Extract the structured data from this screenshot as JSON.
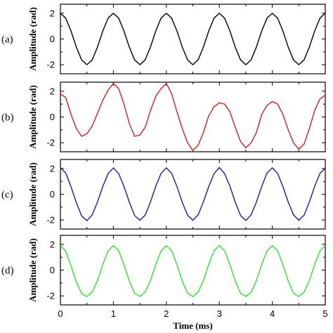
{
  "chart_data": [
    {
      "type": "line",
      "panel_label": "(a)",
      "ylabel": "Amplitude (rad)",
      "xlabel": "",
      "xlim": [
        0,
        5
      ],
      "ylim": [
        -2.7,
        2.7
      ],
      "xticks": [
        "0",
        "1",
        "2",
        "3",
        "4",
        "5"
      ],
      "yticks": [
        "-2",
        "0",
        "2"
      ],
      "grid": false,
      "color": "#000000",
      "x": [
        0,
        0.1,
        0.2,
        0.3,
        0.4,
        0.5,
        0.6,
        0.7,
        0.8,
        0.9,
        1.0,
        1.1,
        1.2,
        1.3,
        1.4,
        1.5,
        1.6,
        1.7,
        1.8,
        1.9,
        2.0,
        2.1,
        2.2,
        2.3,
        2.4,
        2.5,
        2.6,
        2.7,
        2.8,
        2.9,
        3.0,
        3.1,
        3.2,
        3.3,
        3.4,
        3.5,
        3.6,
        3.7,
        3.8,
        3.9,
        4.0,
        4.1,
        4.2,
        4.3,
        4.4,
        4.5,
        4.6,
        4.7,
        4.8,
        4.9,
        5.0
      ],
      "y": [
        2.0,
        1.62,
        0.62,
        -0.62,
        -1.62,
        -2.0,
        -1.62,
        -0.62,
        0.62,
        1.62,
        2.0,
        1.62,
        0.62,
        -0.62,
        -1.62,
        -2.0,
        -1.62,
        -0.62,
        0.62,
        1.62,
        2.0,
        1.62,
        0.62,
        -0.62,
        -1.62,
        -2.0,
        -1.62,
        -0.62,
        0.62,
        1.62,
        2.0,
        1.62,
        0.62,
        -0.62,
        -1.62,
        -2.0,
        -1.62,
        -0.62,
        0.62,
        1.62,
        2.0,
        1.62,
        0.62,
        -0.62,
        -1.62,
        -2.0,
        -1.62,
        -0.62,
        0.62,
        1.62,
        2.0
      ]
    },
    {
      "type": "line",
      "panel_label": "(b)",
      "ylabel": "Amplitude (rad)",
      "xlabel": "",
      "xlim": [
        0,
        5
      ],
      "ylim": [
        -2.7,
        2.7
      ],
      "xticks": [
        "0",
        "1",
        "2",
        "3",
        "4",
        "5"
      ],
      "yticks": [
        "-2",
        "0",
        "2"
      ],
      "grid": false,
      "color": "#cc2020",
      "x": [
        0,
        0.1,
        0.2,
        0.3,
        0.4,
        0.5,
        0.6,
        0.7,
        0.8,
        0.9,
        1.0,
        1.1,
        1.2,
        1.3,
        1.4,
        1.5,
        1.6,
        1.7,
        1.8,
        1.9,
        2.0,
        2.1,
        2.2,
        2.3,
        2.4,
        2.5,
        2.6,
        2.7,
        2.8,
        2.9,
        3.0,
        3.1,
        3.2,
        3.3,
        3.4,
        3.5,
        3.6,
        3.7,
        3.8,
        3.9,
        4.0,
        4.1,
        4.2,
        4.3,
        4.4,
        4.5,
        4.6,
        4.7,
        4.8,
        4.9,
        5.0
      ],
      "y": [
        1.8,
        1.5,
        0.2,
        -0.9,
        -1.5,
        -1.3,
        -0.7,
        0.3,
        1.3,
        2.1,
        2.6,
        2.2,
        1.0,
        -0.5,
        -1.5,
        -1.4,
        -0.8,
        0.5,
        1.6,
        2.2,
        2.6,
        1.8,
        0.4,
        -0.9,
        -2.0,
        -2.6,
        -2.2,
        -1.2,
        0.1,
        0.8,
        1.1,
        1.0,
        0.4,
        -0.8,
        -1.9,
        -2.4,
        -2.0,
        -1.2,
        0.2,
        0.9,
        1.2,
        1.0,
        0.2,
        -1.0,
        -2.0,
        -2.5,
        -2.1,
        -0.9,
        0.5,
        1.4,
        1.7
      ]
    },
    {
      "type": "line",
      "panel_label": "(c)",
      "ylabel": "Amplitude (rad)",
      "xlabel": "",
      "xlim": [
        0,
        5
      ],
      "ylim": [
        -2.7,
        2.7
      ],
      "xticks": [
        "0",
        "1",
        "2",
        "3",
        "4",
        "5"
      ],
      "yticks": [
        "-2",
        "0",
        "2"
      ],
      "grid": false,
      "color": "#1a1aa6",
      "x": [
        0,
        0.1,
        0.2,
        0.3,
        0.4,
        0.5,
        0.6,
        0.7,
        0.8,
        0.9,
        1.0,
        1.1,
        1.2,
        1.3,
        1.4,
        1.5,
        1.6,
        1.7,
        1.8,
        1.9,
        2.0,
        2.1,
        2.2,
        2.3,
        2.4,
        2.5,
        2.6,
        2.7,
        2.8,
        2.9,
        3.0,
        3.1,
        3.2,
        3.3,
        3.4,
        3.5,
        3.6,
        3.7,
        3.8,
        3.9,
        4.0,
        4.1,
        4.2,
        4.3,
        4.4,
        4.5,
        4.6,
        4.7,
        4.8,
        4.9,
        5.0
      ],
      "y": [
        2.05,
        1.65,
        0.58,
        -0.65,
        -1.68,
        -2.05,
        -1.6,
        -0.6,
        0.6,
        1.6,
        2.05,
        1.6,
        0.6,
        -0.6,
        -1.65,
        -2.02,
        -1.62,
        -0.6,
        0.62,
        1.62,
        2.05,
        1.62,
        0.6,
        -0.62,
        -1.62,
        -2.02,
        -1.6,
        -0.58,
        0.6,
        1.6,
        2.08,
        1.6,
        0.62,
        -0.6,
        -1.65,
        -2.04,
        -1.6,
        -0.6,
        0.6,
        1.65,
        2.05,
        1.62,
        0.6,
        -0.6,
        -1.6,
        -2.02,
        -1.62,
        -0.6,
        0.62,
        1.62,
        2.02
      ]
    },
    {
      "type": "line",
      "panel_label": "(d)",
      "ylabel": "Amplitude (rad)",
      "xlabel": "Time (ms)",
      "xlim": [
        0,
        5
      ],
      "ylim": [
        -2.7,
        2.7
      ],
      "xticks": [
        "0",
        "1",
        "2",
        "3",
        "4",
        "5"
      ],
      "yticks": [
        "-2",
        "0",
        "2"
      ],
      "grid": false,
      "color": "#33dd33",
      "x": [
        0,
        0.1,
        0.2,
        0.3,
        0.4,
        0.5,
        0.6,
        0.7,
        0.8,
        0.9,
        1.0,
        1.1,
        1.2,
        1.3,
        1.4,
        1.5,
        1.6,
        1.7,
        1.8,
        1.9,
        2.0,
        2.1,
        2.2,
        2.3,
        2.4,
        2.5,
        2.6,
        2.7,
        2.8,
        2.9,
        3.0,
        3.1,
        3.2,
        3.3,
        3.4,
        3.5,
        3.6,
        3.7,
        3.8,
        3.9,
        4.0,
        4.1,
        4.2,
        4.3,
        4.4,
        4.5,
        4.6,
        4.7,
        4.8,
        4.9,
        5.0
      ],
      "y": [
        1.95,
        1.45,
        0.32,
        -0.92,
        -1.82,
        -2.05,
        -1.7,
        -0.8,
        0.45,
        1.5,
        1.9,
        1.5,
        0.4,
        -0.85,
        -1.8,
        -2.05,
        -1.7,
        -0.8,
        0.45,
        1.5,
        1.9,
        1.5,
        0.4,
        -0.85,
        -1.8,
        -2.05,
        -1.7,
        -0.8,
        0.45,
        1.5,
        1.9,
        1.5,
        0.4,
        -0.85,
        -1.8,
        -2.05,
        -1.7,
        -0.8,
        0.45,
        1.5,
        1.9,
        1.5,
        0.4,
        -0.85,
        -1.8,
        -2.05,
        -1.7,
        -0.8,
        0.45,
        1.5,
        1.9
      ]
    }
  ]
}
